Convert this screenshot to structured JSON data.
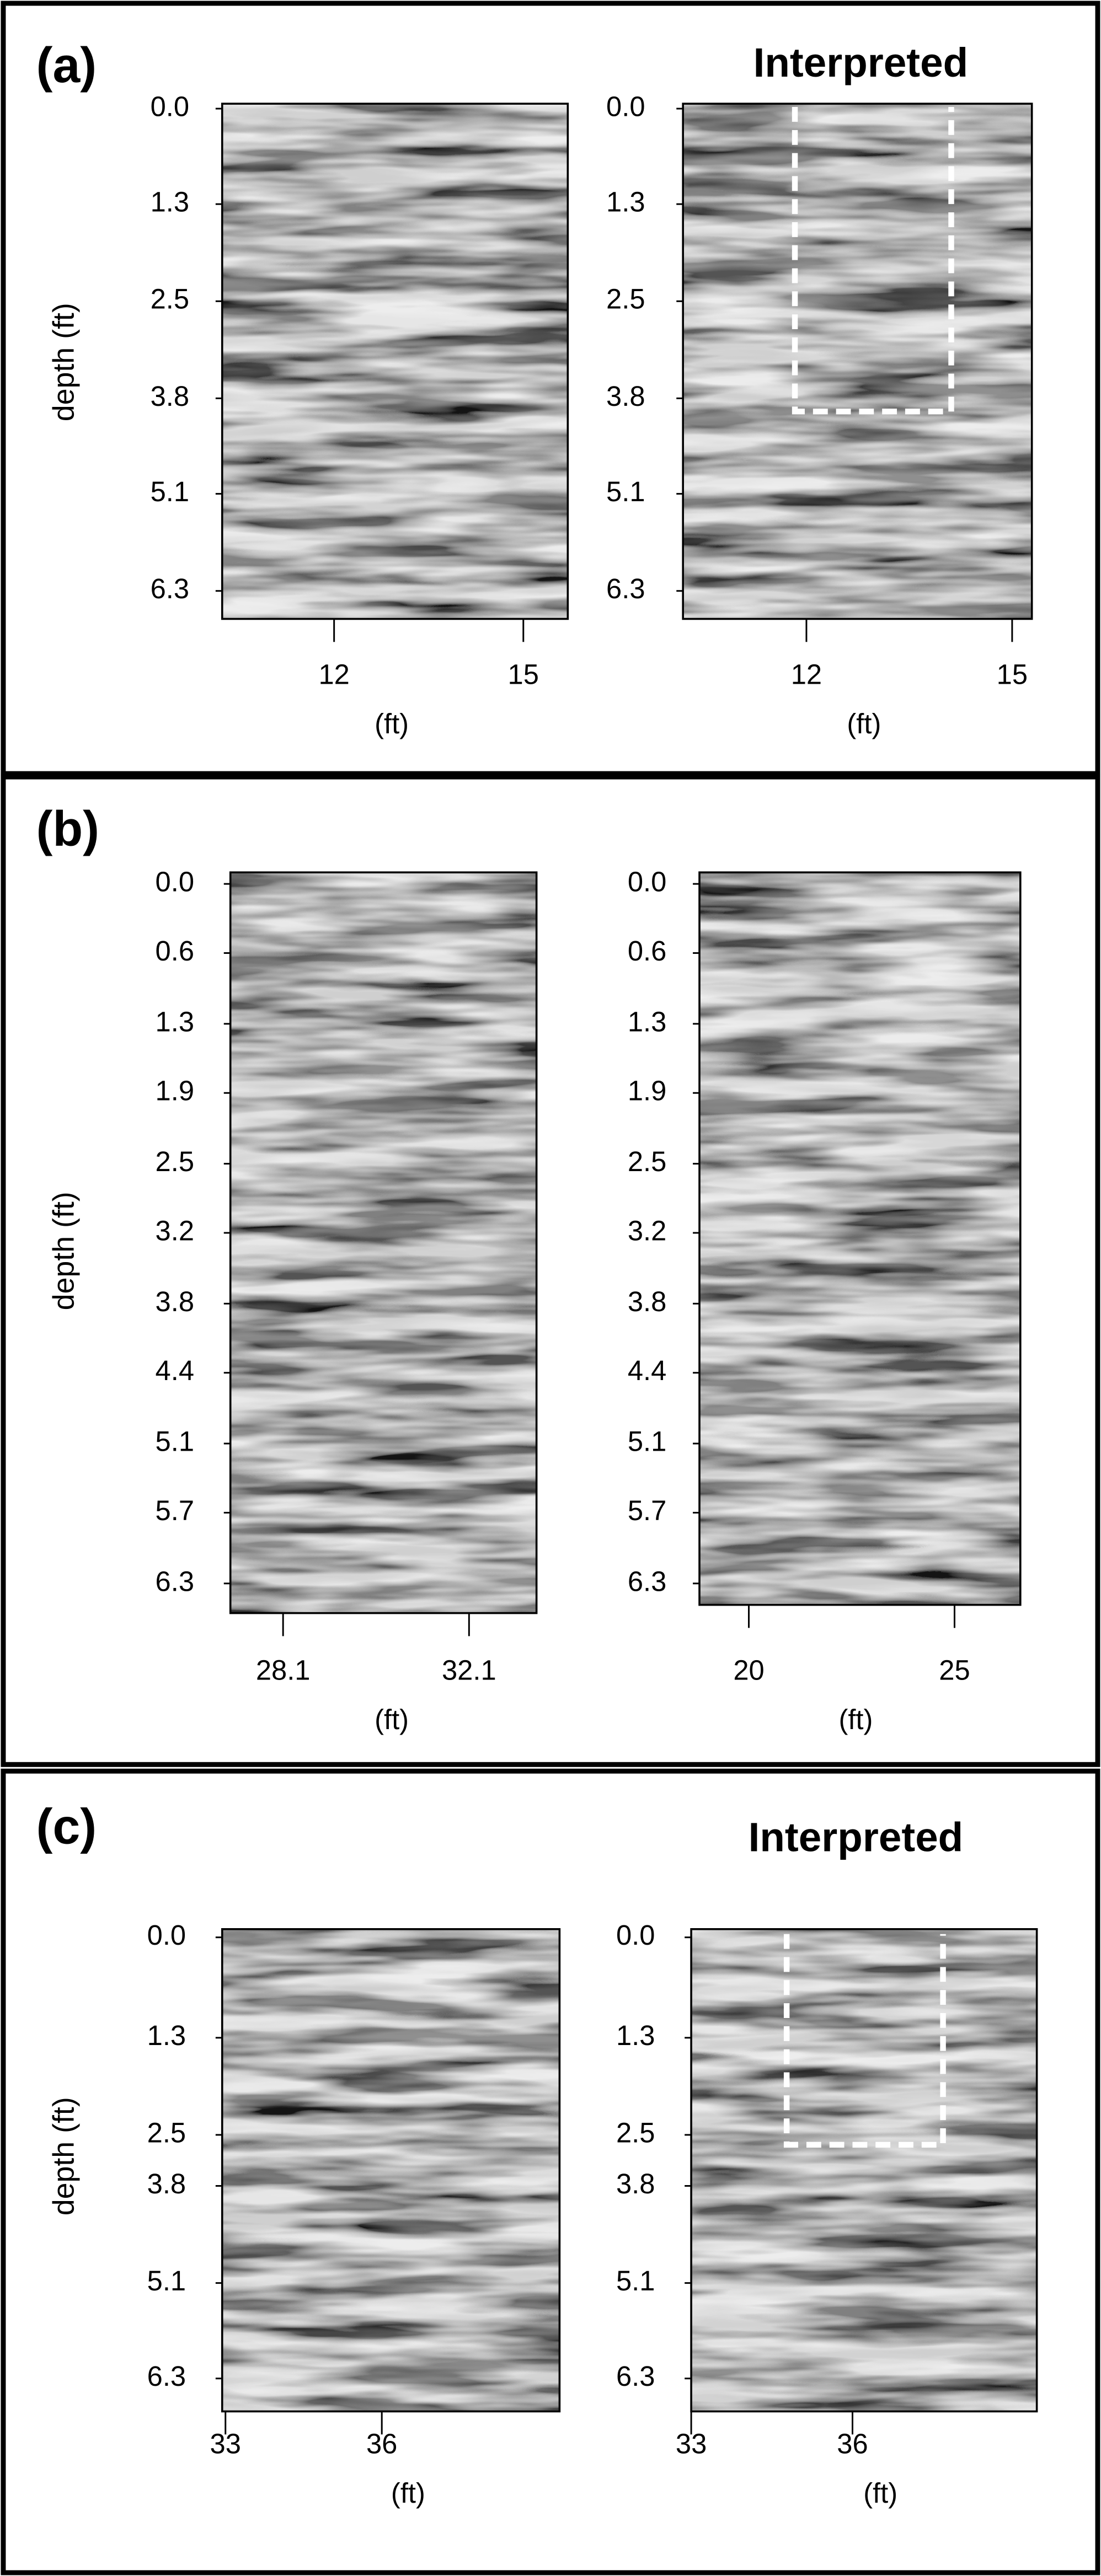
{
  "panels": [
    {
      "label": "(a)",
      "y_axis_title": "depth (ft)",
      "plots": [
        {
          "yticks": [
            "0.0",
            "1.3",
            "2.5",
            "3.8",
            "5.1",
            "6.3"
          ],
          "xticks": [
            "12",
            "15"
          ],
          "x_unit": "(ft)"
        },
        {
          "title": "Interpreted",
          "yticks": [
            "0.0",
            "1.3",
            "2.5",
            "3.8",
            "5.1",
            "6.3"
          ],
          "xticks": [
            "12",
            "15"
          ],
          "x_unit": "(ft)"
        }
      ]
    },
    {
      "label": "(b)",
      "y_axis_title": "depth (ft)",
      "plots": [
        {
          "yticks": [
            "0.0",
            "0.6",
            "1.3",
            "1.9",
            "2.5",
            "3.2",
            "3.8",
            "4.4",
            "5.1",
            "5.7",
            "6.3"
          ],
          "xticks": [
            "28.1",
            "32.1"
          ],
          "x_unit": "(ft)"
        },
        {
          "yticks": [
            "0.0",
            "0.6",
            "1.3",
            "1.9",
            "2.5",
            "3.2",
            "3.8",
            "4.4",
            "5.1",
            "5.7",
            "6.3"
          ],
          "xticks": [
            "20",
            "25"
          ],
          "x_unit": "(ft)"
        }
      ]
    },
    {
      "label": "(c)",
      "y_axis_title": "depth (ft)",
      "plots": [
        {
          "yticks": [
            "0.0",
            "1.3",
            "2.5",
            "3.8",
            "5.1",
            "6.3"
          ],
          "xticks": [
            "33",
            "36"
          ],
          "x_unit": "(ft)"
        },
        {
          "title": "Interpreted",
          "yticks": [
            "0.0",
            "1.3",
            "2.5",
            "3.8",
            "5.1",
            "6.3"
          ],
          "xticks": [
            "33",
            "36"
          ],
          "x_unit": "(ft)"
        }
      ]
    }
  ]
}
